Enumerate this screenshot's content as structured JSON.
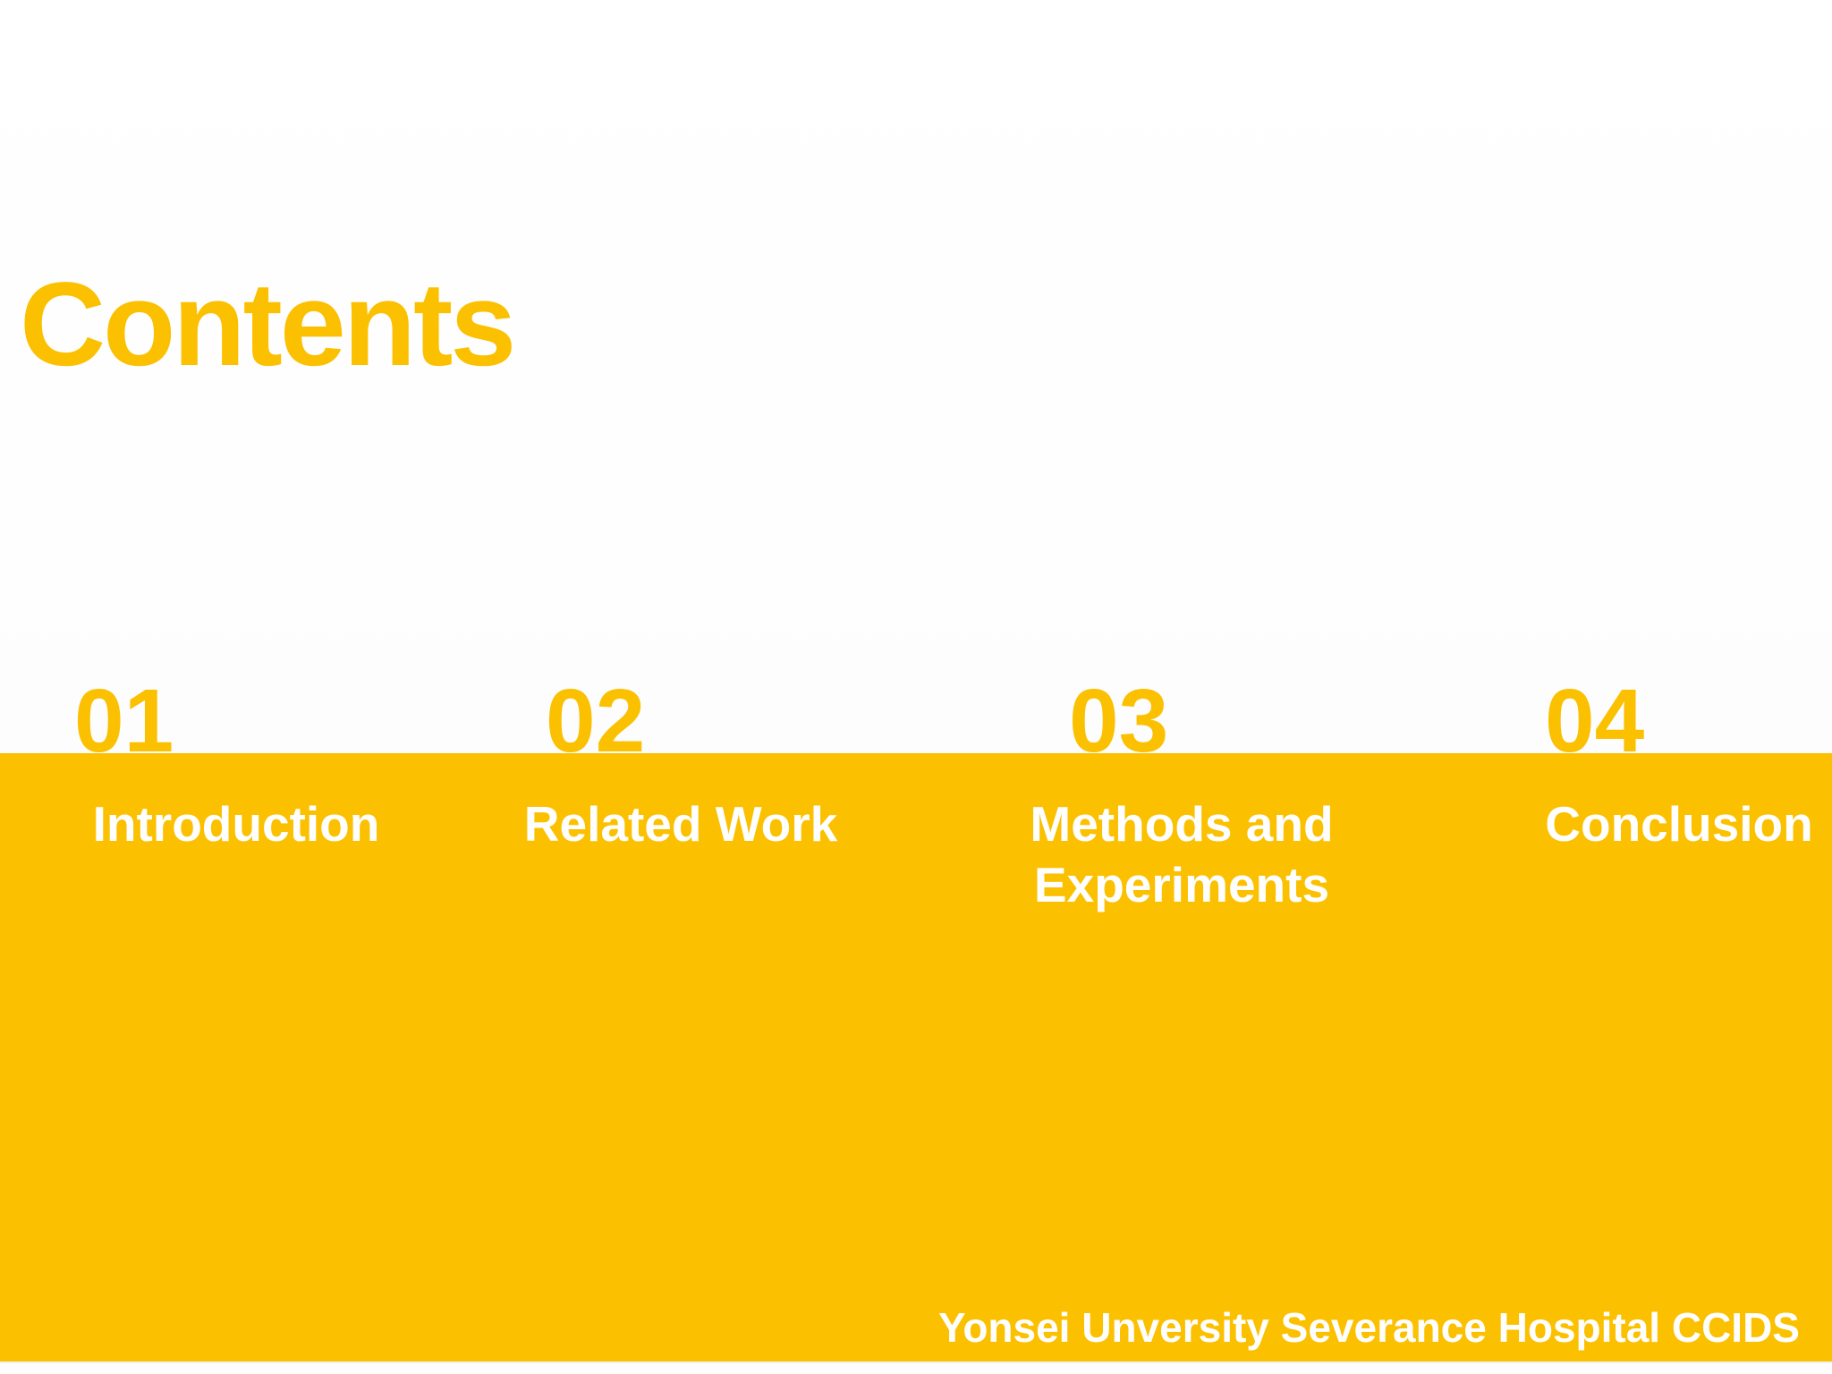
{
  "slide": {
    "title": "Contents",
    "footer": "Yonsei Unversity Severance Hospital CCIDS",
    "colors": {
      "gold": "#fbc000",
      "background": "#fdfdfd",
      "label_text": "#ffffff"
    },
    "toc": [
      {
        "number": "01",
        "label": "Introduction"
      },
      {
        "number": "02",
        "label": "Related Work"
      },
      {
        "number": "03",
        "label": "Methods and Experiments"
      },
      {
        "number": "04",
        "label": "Conclusion"
      }
    ]
  }
}
